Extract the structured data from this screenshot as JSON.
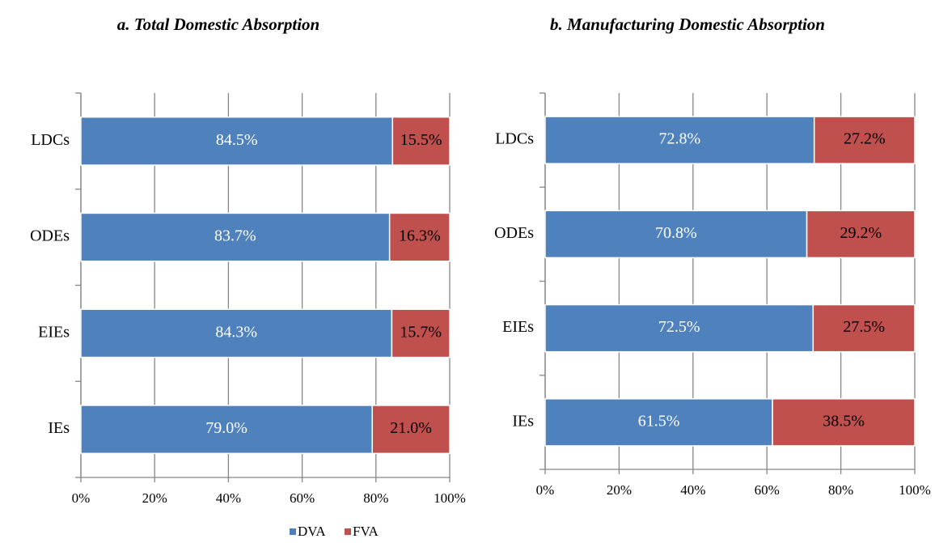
{
  "chart_data": [
    {
      "type": "stacked-bar-horizontal",
      "title": "a. Total Domestic Absorption",
      "categories": [
        "LDCs",
        "ODEs",
        "EIEs",
        "IEs"
      ],
      "series": [
        {
          "name": "DVA",
          "color": "#4f81bd",
          "values": [
            84.5,
            83.7,
            84.3,
            79.0
          ],
          "value_labels": [
            "84.5%",
            "83.7%",
            "84.3%",
            "79.0%"
          ]
        },
        {
          "name": "FVA",
          "color": "#c0504d",
          "values": [
            15.5,
            16.3,
            15.7,
            21.0
          ],
          "value_labels": [
            "15.5%",
            "16.3%",
            "15.7%",
            "21.0%"
          ]
        }
      ],
      "xlim": [
        0,
        100
      ],
      "xticks": [
        {
          "value": 0,
          "label": "0%"
        },
        {
          "value": 20,
          "label": "20%"
        },
        {
          "value": 40,
          "label": "40%"
        },
        {
          "value": 60,
          "label": "60%"
        },
        {
          "value": 80,
          "label": "80%"
        },
        {
          "value": 100,
          "label": "100%"
        }
      ],
      "grid": true
    },
    {
      "type": "stacked-bar-horizontal",
      "title": "b. Manufacturing Domestic Absorption",
      "categories": [
        "LDCs",
        "ODEs",
        "EIEs",
        "IEs"
      ],
      "series": [
        {
          "color": "#4f81bd",
          "values": [
            72.8,
            70.8,
            72.5,
            61.5
          ],
          "value_labels": [
            "72.8%",
            "70.8%",
            "72.5%",
            "61.5%"
          ]
        },
        {
          "color": "#c0504d",
          "values": [
            27.2,
            29.2,
            27.5,
            38.5
          ],
          "value_labels": [
            "27.2%",
            "29.2%",
            "27.5%",
            "38.5%"
          ]
        }
      ],
      "xlim": [
        0,
        100
      ],
      "xticks": [
        {
          "value": 0,
          "label": "0%"
        },
        {
          "value": 20,
          "label": "20%"
        },
        {
          "value": 40,
          "label": "40%"
        },
        {
          "value": 60,
          "label": "60%"
        },
        {
          "value": 80,
          "label": "80%"
        },
        {
          "value": 100,
          "label": "100%"
        }
      ],
      "grid": true
    }
  ]
}
